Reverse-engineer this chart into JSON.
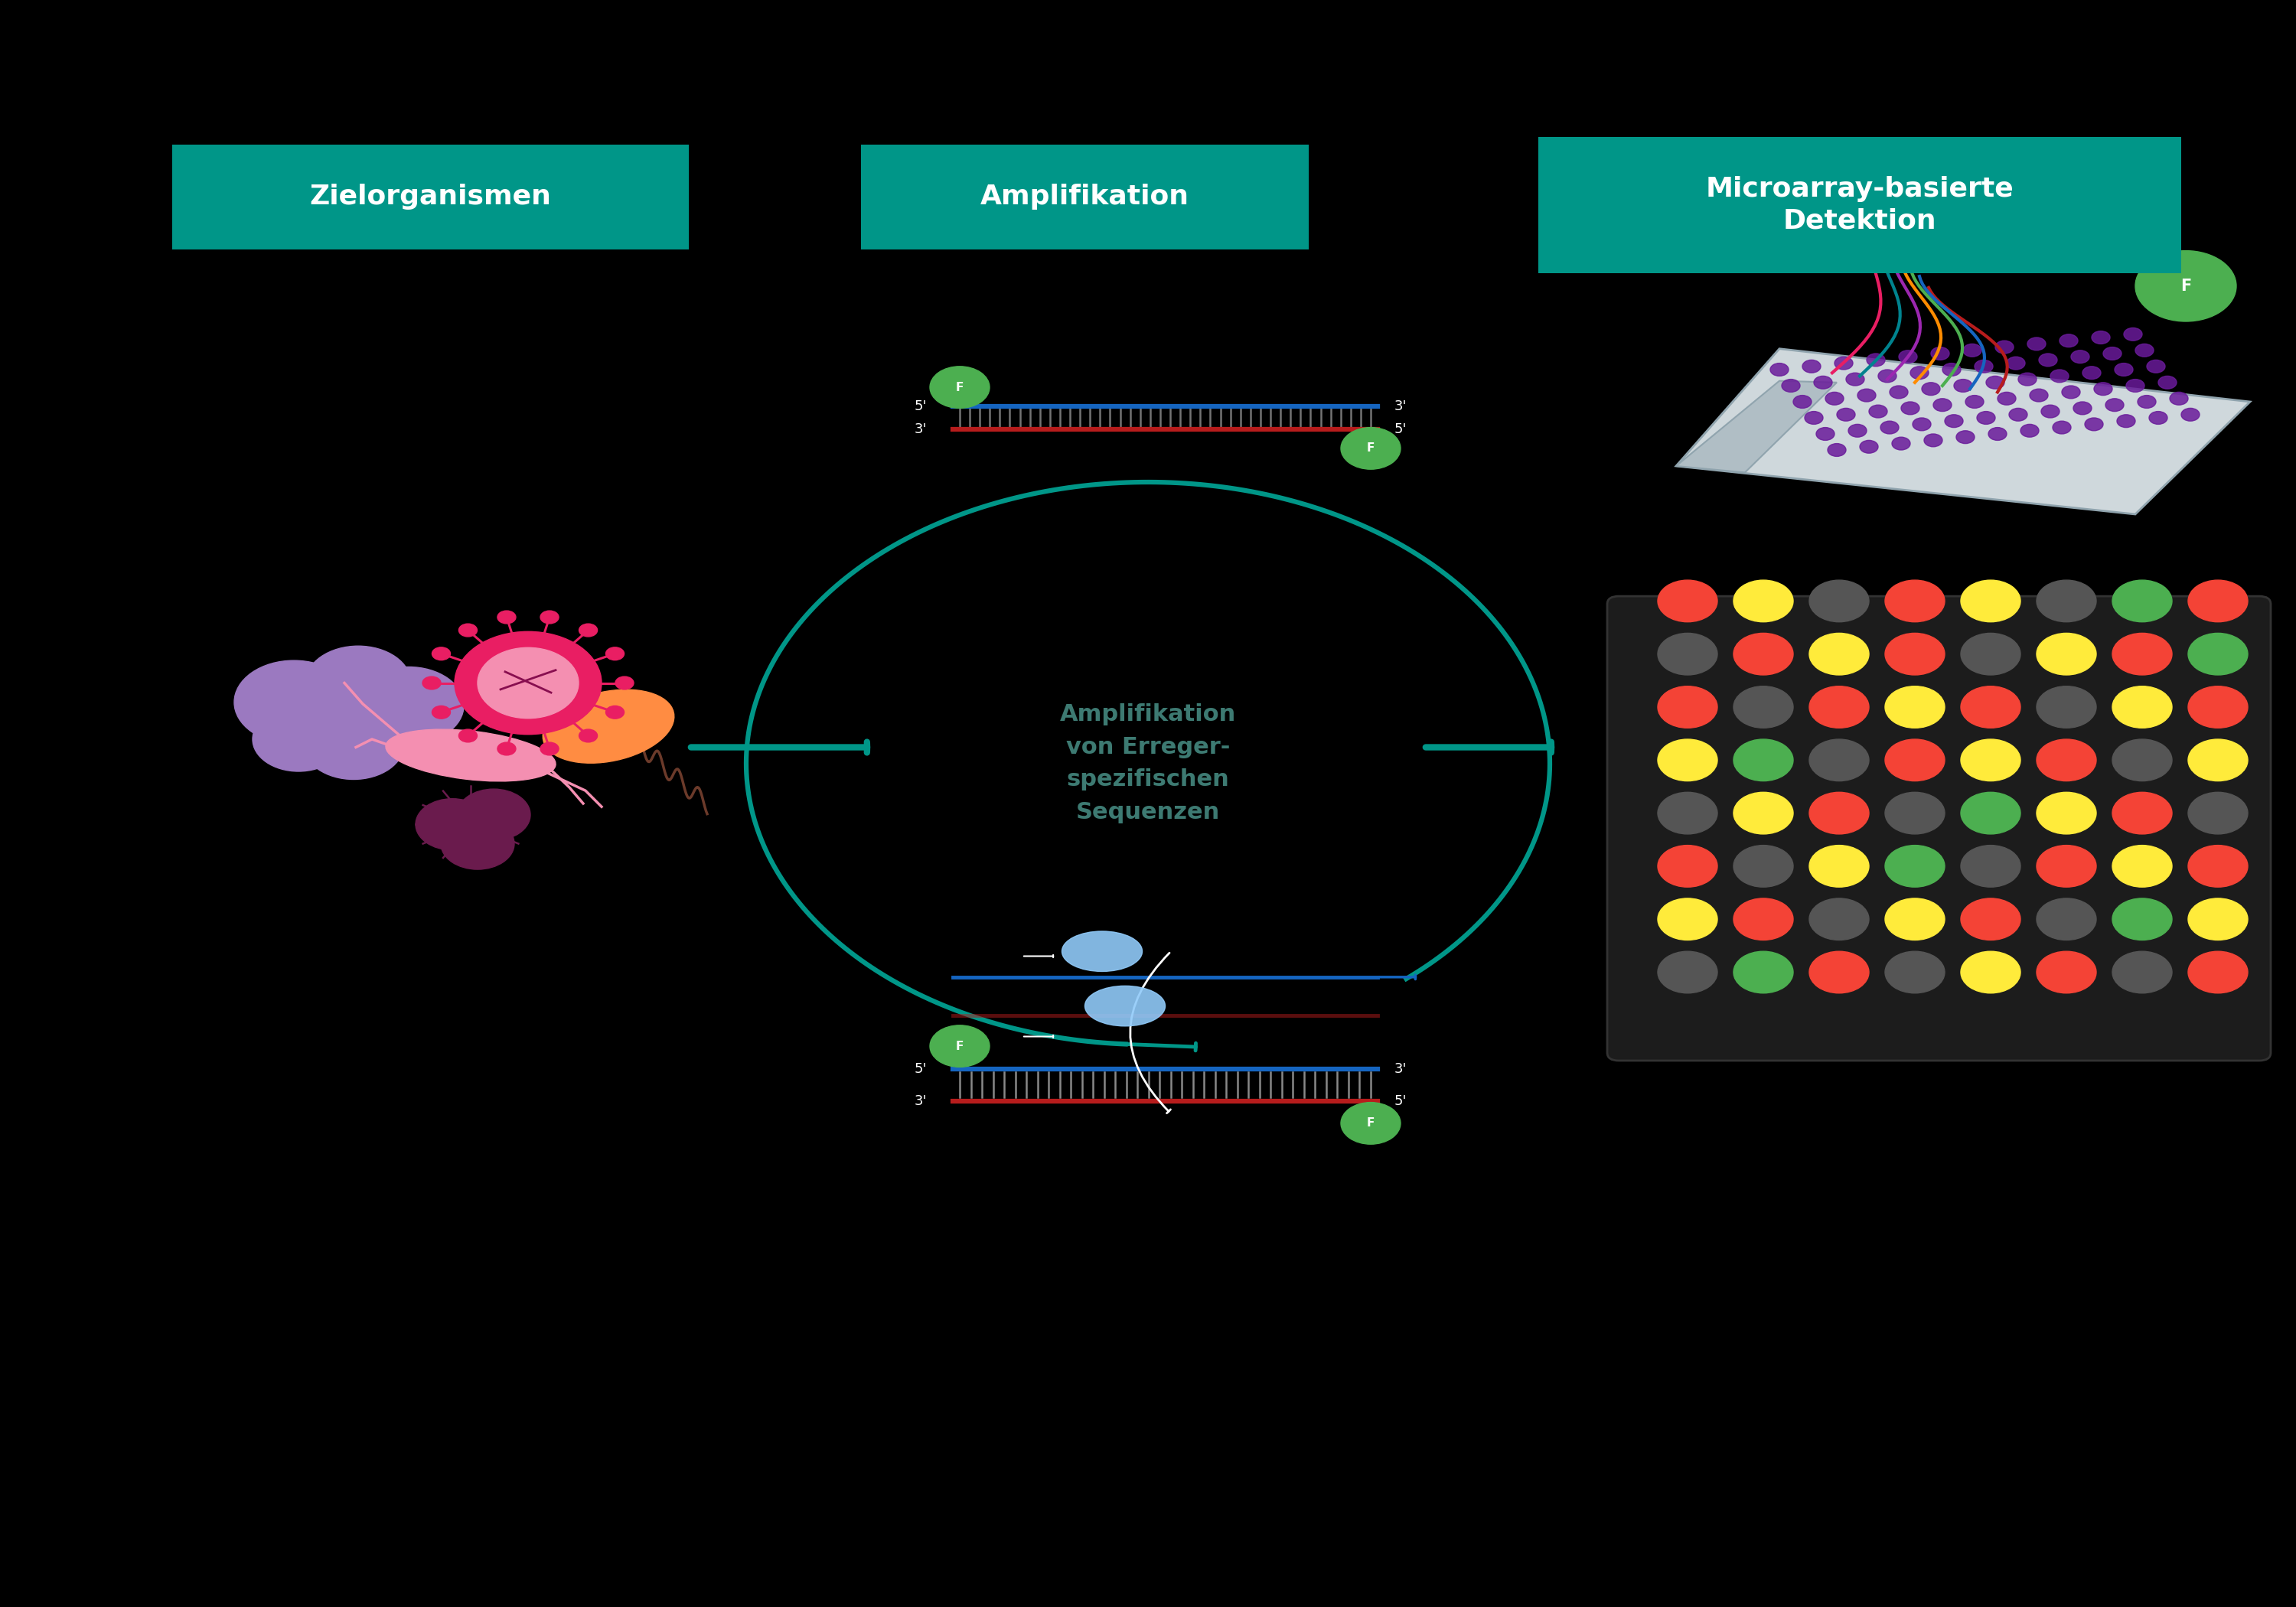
{
  "bg": "#000000",
  "teal": "#009688",
  "white": "#FFFFFF",
  "green_f": "#4CAF50",
  "dna_blue": "#1565C0",
  "dna_red": "#B71C1C",
  "teal_text": "#2E7D7A",
  "box1_label": "Zielorganismen",
  "box2_label": "Amplifikation",
  "box3_label": "Microarray-basierte\nDetektion",
  "circle_text": "Amplifikation\nvon Erreger-\nspezifischen\nSequenzen",
  "dot_colors": [
    [
      "red",
      "yellow",
      "gray",
      "red",
      "yellow",
      "gray",
      "green",
      "red"
    ],
    [
      "gray",
      "red",
      "yellow",
      "red",
      "gray",
      "yellow",
      "red",
      "green"
    ],
    [
      "red",
      "gray",
      "red",
      "yellow",
      "red",
      "gray",
      "yellow",
      "red"
    ],
    [
      "yellow",
      "green",
      "gray",
      "red",
      "yellow",
      "red",
      "gray",
      "yellow"
    ],
    [
      "gray",
      "yellow",
      "red",
      "gray",
      "green",
      "yellow",
      "red",
      "gray"
    ],
    [
      "red",
      "gray",
      "yellow",
      "green",
      "gray",
      "red",
      "yellow",
      "red"
    ],
    [
      "yellow",
      "red",
      "gray",
      "yellow",
      "red",
      "gray",
      "green",
      "yellow"
    ],
    [
      "gray",
      "green",
      "red",
      "gray",
      "yellow",
      "red",
      "gray",
      "red"
    ]
  ]
}
